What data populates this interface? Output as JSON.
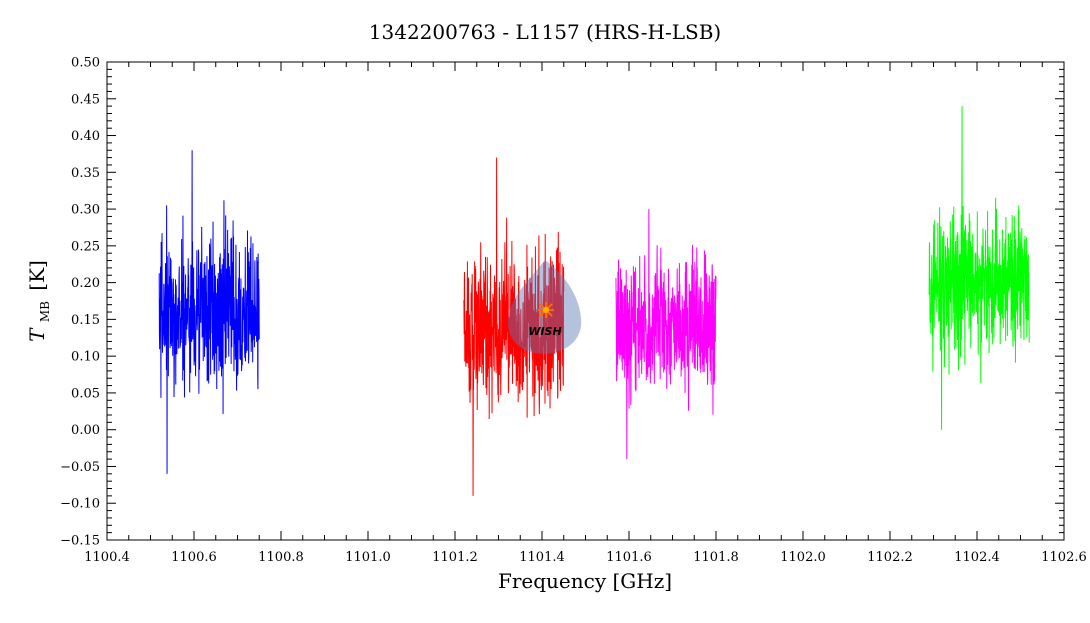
{
  "chart_data": {
    "type": "line",
    "title": "1342200763 - L1157 (HRS-H-LSB)",
    "xlabel": "Frequency [GHz]",
    "ylabel_main": "T",
    "ylabel_sub": "MB",
    "ylabel_unit": "[K]",
    "xlim": [
      1100.4,
      1102.6
    ],
    "ylim": [
      -0.15,
      0.5
    ],
    "x_ticks": [
      1100.4,
      1100.6,
      1100.8,
      1101.0,
      1101.2,
      1101.4,
      1101.6,
      1101.8,
      1102.0,
      1102.2,
      1102.4,
      1102.6
    ],
    "x_tick_labels": [
      "1100.4",
      "1100.6",
      "1100.8",
      "1101.0",
      "1101.2",
      "1101.4",
      "1101.6",
      "1101.8",
      "1102.0",
      "1102.2",
      "1102.4",
      "1102.6"
    ],
    "y_ticks": [
      -0.15,
      -0.1,
      -0.05,
      0.0,
      0.05,
      0.1,
      0.15,
      0.2,
      0.25,
      0.3,
      0.35,
      0.4,
      0.45,
      0.5
    ],
    "y_tick_labels": [
      "−0.15",
      "−0.10",
      "−0.05",
      "0.00",
      "0.05",
      "0.10",
      "0.15",
      "0.20",
      "0.25",
      "0.30",
      "0.35",
      "0.40",
      "0.45",
      "0.50"
    ],
    "grid": false,
    "series": [
      {
        "color": "#0000ff",
        "x_range": [
          1100.52,
          1100.75
        ],
        "mean": 0.16,
        "noise": 0.085,
        "min": -0.06,
        "max": 0.38
      },
      {
        "color": "#ff0000",
        "x_range": [
          1101.22,
          1101.45
        ],
        "mean": 0.14,
        "noise": 0.085,
        "min": -0.09,
        "max": 0.37
      },
      {
        "color": "#ff00ff",
        "x_range": [
          1101.57,
          1101.8
        ],
        "mean": 0.14,
        "noise": 0.075,
        "min": -0.04,
        "max": 0.3
      },
      {
        "color": "#00ff00",
        "x_range": [
          1102.29,
          1102.52
        ],
        "mean": 0.2,
        "noise": 0.075,
        "min": 0.0,
        "max": 0.44
      }
    ]
  },
  "logo": {
    "text": "WISH",
    "color": "#ff6a00"
  }
}
